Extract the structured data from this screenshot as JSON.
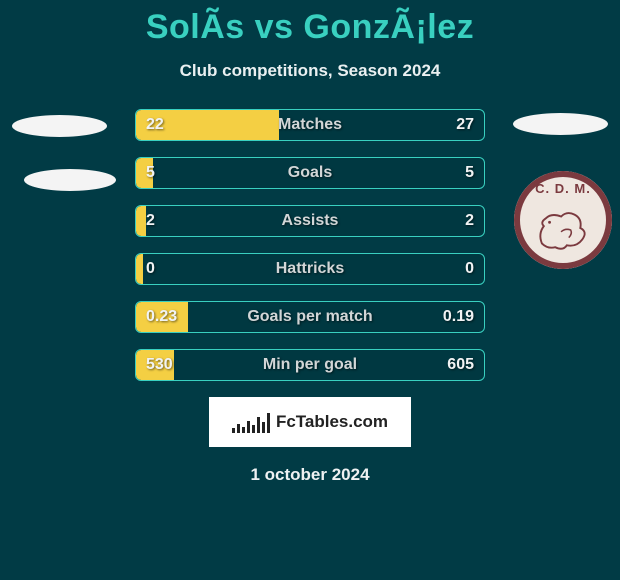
{
  "title": "SolÃ­s vs GonzÃ¡lez",
  "subtitle": "Club competitions, Season 2024",
  "date": "1 october 2024",
  "brand_text": "FcTables.com",
  "colors": {
    "bg": "#013b45",
    "accent": "#39d0c0",
    "bar_left": "#f4cf43",
    "text_light": "#eaf0f1",
    "value_text": "#f1f3f4",
    "label_text": "#d2d6d7",
    "crest_bg": "#efe7e0",
    "crest_ring": "#7b3a3f",
    "white": "#ffffff",
    "black": "#222222"
  },
  "left_side_shapes": {
    "count": 2,
    "shape": "ellipse",
    "color": "#f4f4f4"
  },
  "right_side_shapes": {
    "top_ellipse_color": "#f4f4f4",
    "crest_present": true,
    "crest_letters": "C. D. M.",
    "crest_color": "#7b3a3f"
  },
  "rows": [
    {
      "label": "Matches",
      "left": "22",
      "right": "27",
      "fill_pct": 41
    },
    {
      "label": "Goals",
      "left": "5",
      "right": "5",
      "fill_pct": 5
    },
    {
      "label": "Assists",
      "left": "2",
      "right": "2",
      "fill_pct": 3
    },
    {
      "label": "Hattricks",
      "left": "0",
      "right": "0",
      "fill_pct": 2
    },
    {
      "label": "Goals per match",
      "left": "0.23",
      "right": "0.19",
      "fill_pct": 15
    },
    {
      "label": "Min per goal",
      "left": "530",
      "right": "605",
      "fill_pct": 11
    }
  ],
  "fct_bar_heights": [
    5,
    9,
    6,
    12,
    8,
    16,
    11,
    20
  ]
}
